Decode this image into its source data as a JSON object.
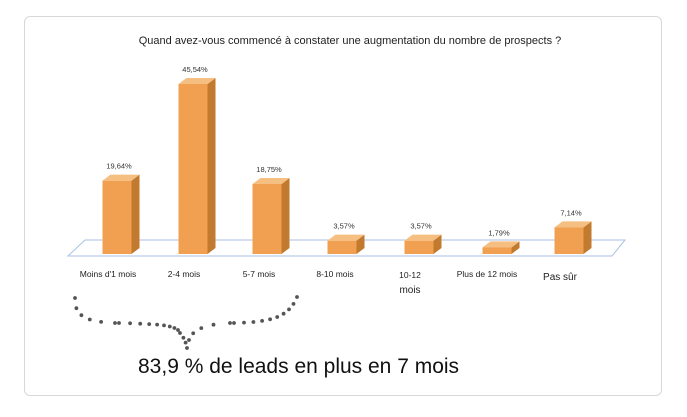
{
  "chart_data": {
    "type": "bar",
    "title": "Quand avez-vous commencé à constater une augmentation du nombre de prospects ?",
    "categories": [
      "Moins d'1 mois",
      "2-4 mois",
      "5-7 mois",
      "8-10 mois",
      "10-12 mois",
      "Plus de 12 mois",
      "Pas sûr"
    ],
    "values": [
      19.64,
      45.54,
      18.75,
      3.57,
      3.57,
      1.79,
      7.14
    ],
    "data_labels": [
      "19,64%",
      "45,54%",
      "18,75%",
      "3,57%",
      "3,57%",
      "1,79%",
      "7,14%"
    ],
    "ylim": [
      0,
      50
    ],
    "grid": false,
    "xlabel": "",
    "ylabel": "",
    "bar_color": "#f0a050",
    "bar_side_color": "#c27a2e",
    "bar_top_color": "#f6bf82"
  },
  "annotation": {
    "text": "83,9 % de leads en plus en 7 mois",
    "brace_color": "#555555"
  }
}
